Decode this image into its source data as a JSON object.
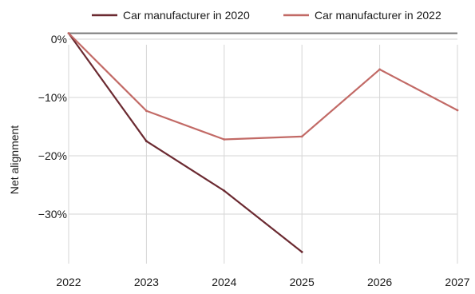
{
  "chart_data": {
    "type": "line",
    "title": "",
    "xlabel": "",
    "ylabel": "Net alignment",
    "x": [
      "2022",
      "2023",
      "2024",
      "2025",
      "2026",
      "2027"
    ],
    "xlim": [
      2022,
      2027
    ],
    "ylim": [
      -38.5,
      1.5
    ],
    "yticks": [
      0,
      -10,
      -20,
      -30
    ],
    "ytick_labels": [
      "0%",
      "−10%",
      "−20%",
      "−30%"
    ],
    "reference_line": 1,
    "grid": true,
    "legend_position": "top",
    "series": [
      {
        "name": "Car manufacturer in 2020",
        "color": "#6b2a31",
        "x": [
          2022,
          2023,
          2024,
          2025
        ],
        "values": [
          1,
          -17.5,
          -26,
          -36.5
        ]
      },
      {
        "name": "Car manufacturer in 2022",
        "color": "#c26a66",
        "x": [
          2022,
          2023,
          2024,
          2025,
          2026,
          2027
        ],
        "values": [
          1,
          -12.3,
          -17.2,
          -16.7,
          -5.2,
          -12.2
        ]
      }
    ]
  }
}
